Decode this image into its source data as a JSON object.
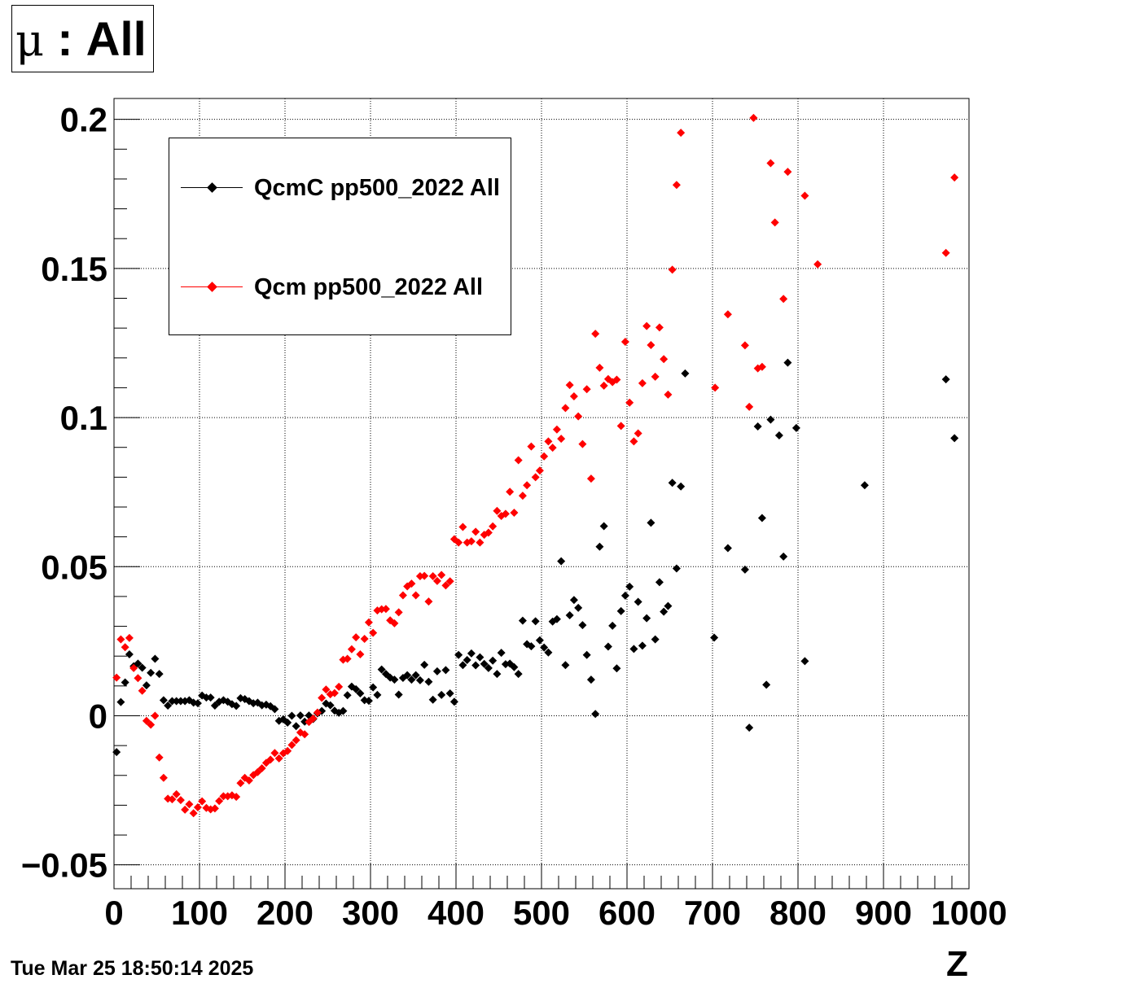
{
  "title": {
    "symbol": "μ",
    "text": " : All"
  },
  "timestamp": "Tue Mar 25 18:50:14 2025",
  "chart_data": {
    "type": "scatter",
    "title": "μ : All",
    "xlabel": "Z",
    "ylabel": "",
    "xlim": [
      0,
      1000
    ],
    "ylim": [
      -0.058,
      0.207
    ],
    "x_ticks": [
      0,
      100,
      200,
      300,
      400,
      500,
      600,
      700,
      800,
      900,
      1000
    ],
    "x_tick_labels": [
      "0",
      "100",
      "200",
      "300",
      "400",
      "500",
      "600",
      "700",
      "800",
      "900",
      "1000"
    ],
    "y_ticks": [
      -0.05,
      0,
      0.05,
      0.1,
      0.15,
      0.2
    ],
    "y_tick_labels": [
      "−0.05",
      "0",
      "0.05",
      "0.1",
      "0.15",
      "0.2"
    ],
    "grid": true,
    "legend_position": "top-left",
    "series": [
      {
        "name": "QcmC pp500_2022 All",
        "color": "#000000",
        "points": [
          [
            3,
            -0.0122
          ],
          [
            8,
            0.0046
          ],
          [
            13,
            0.0112
          ],
          [
            18,
            0.0206
          ],
          [
            23,
            0.0166
          ],
          [
            28,
            0.0175
          ],
          [
            33,
            0.0161
          ],
          [
            38,
            0.0102
          ],
          [
            43,
            0.0144
          ],
          [
            48,
            0.0191
          ],
          [
            53,
            0.014
          ],
          [
            58,
            0.0052
          ],
          [
            63,
            0.0034
          ],
          [
            68,
            0.0049
          ],
          [
            73,
            0.0049
          ],
          [
            78,
            0.0049
          ],
          [
            83,
            0.0049
          ],
          [
            88,
            0.0052
          ],
          [
            93,
            0.0044
          ],
          [
            98,
            0.0042
          ],
          [
            103,
            0.0068
          ],
          [
            108,
            0.0061
          ],
          [
            113,
            0.0061
          ],
          [
            118,
            0.0034
          ],
          [
            123,
            0.0047
          ],
          [
            128,
            0.0052
          ],
          [
            133,
            0.0047
          ],
          [
            138,
            0.0039
          ],
          [
            143,
            0.0033
          ],
          [
            148,
            0.0059
          ],
          [
            153,
            0.0056
          ],
          [
            158,
            0.0049
          ],
          [
            163,
            0.0042
          ],
          [
            168,
            0.0044
          ],
          [
            173,
            0.0035
          ],
          [
            178,
            0.0037
          ],
          [
            183,
            0.0032
          ],
          [
            188,
            0.0022
          ],
          [
            193,
            -0.0017
          ],
          [
            198,
            -0.0012
          ],
          [
            203,
            -0.0023
          ],
          [
            208,
            0.0
          ],
          [
            213,
            -0.0035
          ],
          [
            218,
            0.0001
          ],
          [
            223,
            -0.002
          ],
          [
            228,
            0.0001
          ],
          [
            233,
            -0.0011
          ],
          [
            238,
            0.0008
          ],
          [
            243,
            0.0016
          ],
          [
            248,
            0.0041
          ],
          [
            253,
            0.0035
          ],
          [
            258,
            0.0017
          ],
          [
            263,
            0.001
          ],
          [
            268,
            0.0016
          ],
          [
            273,
            0.0069
          ],
          [
            278,
            0.0098
          ],
          [
            283,
            0.0089
          ],
          [
            288,
            0.0075
          ],
          [
            293,
            0.0052
          ],
          [
            298,
            0.005
          ],
          [
            303,
            0.0095
          ],
          [
            308,
            0.007
          ],
          [
            313,
            0.0155
          ],
          [
            318,
            0.014
          ],
          [
            323,
            0.0128
          ],
          [
            328,
            0.0121
          ],
          [
            333,
            0.0071
          ],
          [
            338,
            0.0127
          ],
          [
            343,
            0.0136
          ],
          [
            348,
            0.0121
          ],
          [
            353,
            0.0136
          ],
          [
            358,
            0.0119
          ],
          [
            363,
            0.0171
          ],
          [
            368,
            0.0114
          ],
          [
            373,
            0.0054
          ],
          [
            378,
            0.0149
          ],
          [
            383,
            0.007
          ],
          [
            388,
            0.0153
          ],
          [
            393,
            0.0075
          ],
          [
            398,
            0.0047
          ],
          [
            403,
            0.0204
          ],
          [
            408,
            0.017
          ],
          [
            413,
            0.0187
          ],
          [
            418,
            0.0209
          ],
          [
            423,
            0.0169
          ],
          [
            428,
            0.0196
          ],
          [
            433,
            0.0174
          ],
          [
            438,
            0.016
          ],
          [
            443,
            0.0185
          ],
          [
            448,
            0.014
          ],
          [
            453,
            0.0211
          ],
          [
            458,
            0.0173
          ],
          [
            463,
            0.0175
          ],
          [
            468,
            0.0163
          ],
          [
            473,
            0.014
          ],
          [
            478,
            0.0319
          ],
          [
            483,
            0.024
          ],
          [
            488,
            0.0233
          ],
          [
            493,
            0.0317
          ],
          [
            498,
            0.0253
          ],
          [
            503,
            0.0229
          ],
          [
            508,
            0.0212
          ],
          [
            513,
            0.0316
          ],
          [
            518,
            0.0324
          ],
          [
            523,
            0.0518
          ],
          [
            528,
            0.017
          ],
          [
            533,
            0.0337
          ],
          [
            538,
            0.0388
          ],
          [
            543,
            0.0362
          ],
          [
            548,
            0.0304
          ],
          [
            553,
            0.0204
          ],
          [
            558,
            0.0121
          ],
          [
            563,
            0.0006
          ],
          [
            568,
            0.0567
          ],
          [
            573,
            0.0636
          ],
          [
            578,
            0.0232
          ],
          [
            583,
            0.0302
          ],
          [
            588,
            0.0159
          ],
          [
            593,
            0.0351
          ],
          [
            598,
            0.0403
          ],
          [
            603,
            0.0433
          ],
          [
            608,
            0.0224
          ],
          [
            613,
            0.0382
          ],
          [
            618,
            0.0235
          ],
          [
            623,
            0.0327
          ],
          [
            628,
            0.0647
          ],
          [
            633,
            0.0256
          ],
          [
            638,
            0.0448
          ],
          [
            643,
            0.0349
          ],
          [
            648,
            0.0368
          ],
          [
            653,
            0.0781
          ],
          [
            658,
            0.0494
          ],
          [
            663,
            0.0769
          ],
          [
            668,
            0.1148
          ],
          [
            702,
            0.0262
          ],
          [
            718,
            0.0562
          ],
          [
            738,
            0.049
          ],
          [
            743,
            -0.004
          ],
          [
            753,
            0.097
          ],
          [
            758,
            0.0663
          ],
          [
            763,
            0.0104
          ],
          [
            768,
            0.0993
          ],
          [
            778,
            0.094
          ],
          [
            783,
            0.0534
          ],
          [
            788,
            0.1184
          ],
          [
            798,
            0.0965
          ],
          [
            808,
            0.0183
          ],
          [
            878,
            0.0773
          ],
          [
            973,
            0.1128
          ],
          [
            983,
            0.0931
          ]
        ]
      },
      {
        "name": "Qcm pp500_2022 All",
        "color": "#ff0000",
        "points": [
          [
            3,
            0.0128
          ],
          [
            8,
            0.0256
          ],
          [
            13,
            0.023
          ],
          [
            18,
            0.0261
          ],
          [
            23,
            0.016
          ],
          [
            28,
            0.0126
          ],
          [
            33,
            0.0084
          ],
          [
            38,
            -0.0017
          ],
          [
            43,
            -0.003
          ],
          [
            48,
            0.0
          ],
          [
            53,
            -0.014
          ],
          [
            58,
            -0.0208
          ],
          [
            63,
            -0.0278
          ],
          [
            68,
            -0.028
          ],
          [
            73,
            -0.0263
          ],
          [
            78,
            -0.0283
          ],
          [
            83,
            -0.0315
          ],
          [
            88,
            -0.0297
          ],
          [
            93,
            -0.0327
          ],
          [
            98,
            -0.0307
          ],
          [
            103,
            -0.0287
          ],
          [
            108,
            -0.0309
          ],
          [
            113,
            -0.0314
          ],
          [
            118,
            -0.0311
          ],
          [
            123,
            -0.0286
          ],
          [
            128,
            -0.027
          ],
          [
            133,
            -0.027
          ],
          [
            138,
            -0.0267
          ],
          [
            143,
            -0.0272
          ],
          [
            148,
            -0.0226
          ],
          [
            153,
            -0.0208
          ],
          [
            158,
            -0.0217
          ],
          [
            163,
            -0.0199
          ],
          [
            168,
            -0.0189
          ],
          [
            173,
            -0.0176
          ],
          [
            178,
            -0.0158
          ],
          [
            183,
            -0.0147
          ],
          [
            188,
            -0.0125
          ],
          [
            193,
            -0.0143
          ],
          [
            198,
            -0.0126
          ],
          [
            203,
            -0.0118
          ],
          [
            208,
            -0.0098
          ],
          [
            213,
            -0.0082
          ],
          [
            218,
            -0.0056
          ],
          [
            223,
            -0.0062
          ],
          [
            228,
            -0.0021
          ],
          [
            233,
            -0.0009
          ],
          [
            238,
            0.0011
          ],
          [
            243,
            0.006
          ],
          [
            248,
            0.0088
          ],
          [
            253,
            0.0072
          ],
          [
            258,
            0.0076
          ],
          [
            263,
            0.0097
          ],
          [
            268,
            0.0188
          ],
          [
            273,
            0.0191
          ],
          [
            278,
            0.0223
          ],
          [
            283,
            0.0263
          ],
          [
            288,
            0.0206
          ],
          [
            293,
            0.0258
          ],
          [
            298,
            0.0313
          ],
          [
            303,
            0.0278
          ],
          [
            308,
            0.0353
          ],
          [
            313,
            0.0357
          ],
          [
            318,
            0.0358
          ],
          [
            323,
            0.032
          ],
          [
            328,
            0.031
          ],
          [
            333,
            0.0347
          ],
          [
            338,
            0.0404
          ],
          [
            343,
            0.0434
          ],
          [
            348,
            0.0443
          ],
          [
            353,
            0.0404
          ],
          [
            358,
            0.0468
          ],
          [
            363,
            0.0469
          ],
          [
            368,
            0.0383
          ],
          [
            373,
            0.0468
          ],
          [
            378,
            0.0452
          ],
          [
            383,
            0.0472
          ],
          [
            388,
            0.0437
          ],
          [
            393,
            0.0451
          ],
          [
            398,
            0.0592
          ],
          [
            403,
            0.0581
          ],
          [
            408,
            0.0633
          ],
          [
            413,
            0.0581
          ],
          [
            418,
            0.0585
          ],
          [
            423,
            0.0617
          ],
          [
            428,
            0.0581
          ],
          [
            433,
            0.0607
          ],
          [
            438,
            0.0614
          ],
          [
            443,
            0.0635
          ],
          [
            448,
            0.0687
          ],
          [
            453,
            0.067
          ],
          [
            458,
            0.0677
          ],
          [
            463,
            0.0751
          ],
          [
            468,
            0.0681
          ],
          [
            473,
            0.0857
          ],
          [
            478,
            0.0738
          ],
          [
            483,
            0.0773
          ],
          [
            488,
            0.0903
          ],
          [
            493,
            0.08
          ],
          [
            498,
            0.0822
          ],
          [
            503,
            0.087
          ],
          [
            508,
            0.092
          ],
          [
            513,
            0.0899
          ],
          [
            518,
            0.096
          ],
          [
            523,
            0.0929
          ],
          [
            528,
            0.1032
          ],
          [
            533,
            0.1109
          ],
          [
            538,
            0.1071
          ],
          [
            543,
            0.1004
          ],
          [
            548,
            0.0911
          ],
          [
            553,
            0.1095
          ],
          [
            558,
            0.0795
          ],
          [
            563,
            0.1281
          ],
          [
            568,
            0.1167
          ],
          [
            573,
            0.1107
          ],
          [
            578,
            0.1129
          ],
          [
            583,
            0.1119
          ],
          [
            588,
            0.1127
          ],
          [
            593,
            0.0972
          ],
          [
            598,
            0.1254
          ],
          [
            603,
            0.105
          ],
          [
            608,
            0.092
          ],
          [
            613,
            0.0947
          ],
          [
            618,
            0.1115
          ],
          [
            623,
            0.1307
          ],
          [
            628,
            0.1243
          ],
          [
            633,
            0.1137
          ],
          [
            638,
            0.1302
          ],
          [
            643,
            0.1196
          ],
          [
            648,
            0.1077
          ],
          [
            653,
            0.1496
          ],
          [
            658,
            0.178
          ],
          [
            663,
            0.1955
          ],
          [
            703,
            0.11
          ],
          [
            718,
            0.1346
          ],
          [
            738,
            0.1242
          ],
          [
            743,
            0.1036
          ],
          [
            748,
            0.2005
          ],
          [
            753,
            0.1165
          ],
          [
            758,
            0.117
          ],
          [
            768,
            0.1853
          ],
          [
            773,
            0.1654
          ],
          [
            783,
            0.1398
          ],
          [
            788,
            0.1824
          ],
          [
            808,
            0.1744
          ],
          [
            823,
            0.1514
          ],
          [
            973,
            0.1552
          ],
          [
            983,
            0.1805
          ]
        ]
      }
    ]
  }
}
